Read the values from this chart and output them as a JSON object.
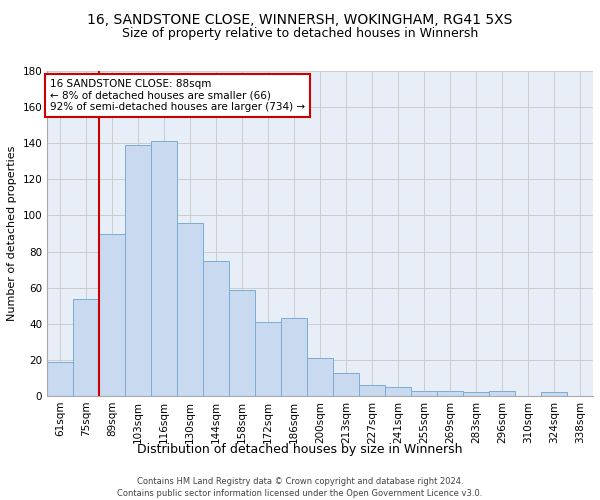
{
  "title_line1": "16, SANDSTONE CLOSE, WINNERSH, WOKINGHAM, RG41 5XS",
  "title_line2": "Size of property relative to detached houses in Winnersh",
  "xlabel": "Distribution of detached houses by size in Winnersh",
  "ylabel": "Number of detached properties",
  "categories": [
    "61sqm",
    "75sqm",
    "89sqm",
    "103sqm",
    "116sqm",
    "130sqm",
    "144sqm",
    "158sqm",
    "172sqm",
    "186sqm",
    "200sqm",
    "213sqm",
    "227sqm",
    "241sqm",
    "255sqm",
    "269sqm",
    "283sqm",
    "296sqm",
    "310sqm",
    "324sqm",
    "338sqm"
  ],
  "values": [
    19,
    54,
    90,
    139,
    141,
    96,
    75,
    59,
    41,
    43,
    21,
    13,
    6,
    5,
    3,
    3,
    2,
    3,
    0,
    2,
    0
  ],
  "bar_color": "#c8d9f0",
  "bar_edge_color": "#7aadd4",
  "ylim": [
    0,
    180
  ],
  "yticks": [
    0,
    20,
    40,
    60,
    80,
    100,
    120,
    140,
    160,
    180
  ],
  "annotation_box_text": "16 SANDSTONE CLOSE: 88sqm\n← 8% of detached houses are smaller (66)\n92% of semi-detached houses are larger (734) →",
  "annotation_box_color": "#ffffff",
  "annotation_box_edge_color": "#cc0000",
  "property_line_color": "#cc0000",
  "footer_line1": "Contains HM Land Registry data © Crown copyright and database right 2024.",
  "footer_line2": "Contains public sector information licensed under the Open Government Licence v3.0.",
  "grid_color": "#cccccc",
  "background_color": "#e8eef8",
  "title_fontsize": 10,
  "subtitle_fontsize": 9,
  "tick_fontsize": 7.5,
  "ylabel_fontsize": 8,
  "xlabel_fontsize": 9
}
